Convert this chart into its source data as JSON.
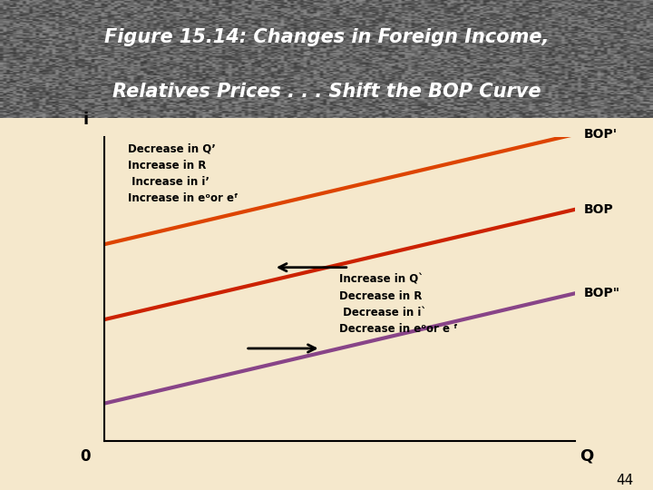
{
  "title_line1": "Figure 15.14: Changes in Foreign Income,",
  "title_line2": "Relatives Prices . . . Shift the BOP Curve",
  "bg_chart_color": "#f5e8cc",
  "bg_outer_color": "#f5e8cc",
  "bop_color": "#cc2200",
  "bop_prime_color": "#dd4400",
  "bop_dprime_color": "#884488",
  "label_bop": "BOP",
  "label_bop_prime": "BOP'",
  "label_bop_dprime": "BOP\"",
  "text_upper_left_lines": [
    "Decrease in Qʼ",
    "Increase in R",
    " Increase in iʼ",
    "Increase in eᵒor eᶠ"
  ],
  "text_lower_right_lines": [
    "Increase in Qˋ",
    "Decrease in R",
    " Decrease in iˋ",
    "Decrease in eᵒor e ᶠ"
  ],
  "footnote": "44",
  "slope": 0.38,
  "bop_intercept": 0.42,
  "bop_prime_intercept": 0.68,
  "bop_dprime_intercept": 0.13
}
